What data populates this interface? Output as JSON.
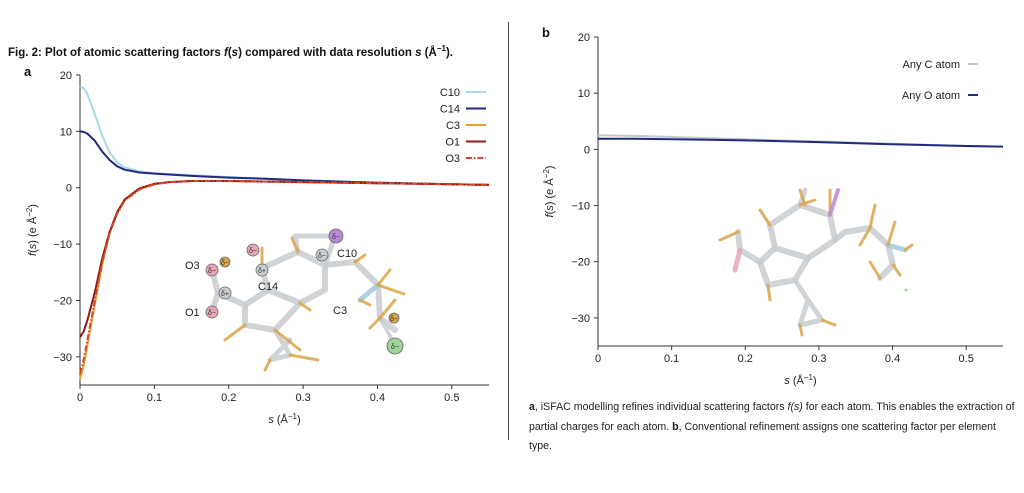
{
  "figure": {
    "title_prefix": "Fig. 2: Plot of atomic scattering factors ",
    "title_f": "f",
    "title_s1": "(",
    "title_s": "s",
    "title_mid": ") compared with data resolution ",
    "title_s2": "s",
    "title_unit": " (Å",
    "title_sup": "−1",
    "title_end": ")."
  },
  "caption": {
    "a_letter": "a",
    "a_text": ", iSFAC modelling refines individual scattering factors ",
    "a_f": "f(s)",
    "a_text2": " for each atom. This enables the extraction of partial charges for each atom. ",
    "b_letter": "b",
    "b_text": ", Conventional refinement assigns one scattering factor per element type."
  },
  "chart_data": [
    {
      "panel_label": "a",
      "type": "line",
      "xlabel": "s (Å−1)",
      "ylabel": "f(s) (e Å−2)",
      "xlim": [
        0,
        0.55
      ],
      "ylim": [
        -35,
        20
      ],
      "xticks": [
        0,
        0.1,
        0.2,
        0.3,
        0.4,
        0.5
      ],
      "xtick_labels": [
        "0",
        "0.1",
        "0.2",
        "0.3",
        "0.4",
        "0.5"
      ],
      "yticks": [
        20,
        10,
        0,
        -10,
        -20,
        -30
      ],
      "ytick_labels": [
        "20",
        "10",
        "0",
        "−10",
        "−20",
        "−30"
      ],
      "grid": false,
      "legend_position": "top-right",
      "series": [
        {
          "name": "C10",
          "color": "#a9d8e8",
          "dash": "solid",
          "x": [
            0,
            0.005,
            0.01,
            0.02,
            0.03,
            0.04,
            0.05,
            0.06,
            0.08,
            0.1,
            0.15,
            0.2,
            0.25,
            0.3,
            0.4,
            0.5,
            0.55
          ],
          "y": [
            18.0,
            17.6,
            16.6,
            13.0,
            9.2,
            6.3,
            4.5,
            3.6,
            2.9,
            2.6,
            2.2,
            1.9,
            1.6,
            1.3,
            0.9,
            0.6,
            0.5
          ]
        },
        {
          "name": "C14",
          "color": "#1f2a80",
          "dash": "solid",
          "x": [
            0,
            0.005,
            0.01,
            0.02,
            0.03,
            0.04,
            0.05,
            0.06,
            0.08,
            0.1,
            0.15,
            0.2,
            0.25,
            0.3,
            0.4,
            0.5,
            0.55
          ],
          "y": [
            10.0,
            9.9,
            9.6,
            8.3,
            6.4,
            4.9,
            3.8,
            3.2,
            2.7,
            2.5,
            2.1,
            1.8,
            1.6,
            1.3,
            0.9,
            0.6,
            0.5
          ]
        },
        {
          "name": "C3",
          "color": "#e8a22a",
          "dash": "solid",
          "x": [
            0,
            0.005,
            0.01,
            0.02,
            0.03,
            0.04,
            0.05,
            0.06,
            0.08,
            0.1,
            0.12,
            0.15,
            0.2,
            0.3,
            0.4,
            0.5,
            0.55
          ],
          "y": [
            -34.0,
            -31.5,
            -28.0,
            -20.5,
            -13.5,
            -8.0,
            -4.5,
            -2.2,
            -0.2,
            0.6,
            1.0,
            1.2,
            1.2,
            1.0,
            0.8,
            0.6,
            0.5
          ]
        },
        {
          "name": "O1",
          "color": "#8b1a1a",
          "dash": "solid",
          "x": [
            0,
            0.005,
            0.01,
            0.02,
            0.03,
            0.04,
            0.05,
            0.06,
            0.08,
            0.1,
            0.12,
            0.15,
            0.2,
            0.3,
            0.4,
            0.5,
            0.55
          ],
          "y": [
            -26.5,
            -25.5,
            -23.5,
            -18.5,
            -12.5,
            -7.8,
            -4.3,
            -2.1,
            -0.1,
            0.7,
            1.0,
            1.2,
            1.2,
            1.0,
            0.8,
            0.6,
            0.5
          ]
        },
        {
          "name": "O3",
          "color": "#d9472b",
          "dash": "dashdot",
          "x": [
            0,
            0.005,
            0.01,
            0.02,
            0.03,
            0.04,
            0.05,
            0.06,
            0.08,
            0.1,
            0.12,
            0.15,
            0.2,
            0.3,
            0.4,
            0.5,
            0.55
          ],
          "y": [
            -33.0,
            -30.5,
            -27.0,
            -20.0,
            -13.2,
            -8.0,
            -4.6,
            -2.3,
            -0.3,
            0.6,
            1.0,
            1.2,
            1.2,
            1.0,
            0.8,
            0.6,
            0.5
          ]
        }
      ],
      "molecule_labels": [
        "O3",
        "O1",
        "C14",
        "C10",
        "C3"
      ],
      "charge_symbol_neg": "δ−",
      "charge_symbol_pos": "δ+"
    },
    {
      "panel_label": "b",
      "type": "line",
      "xlabel": "s (Å−1)",
      "ylabel": "f(s) (e Å−2)",
      "xlim": [
        0,
        0.55
      ],
      "ylim": [
        -35,
        20
      ],
      "xticks": [
        0,
        0.1,
        0.2,
        0.3,
        0.4,
        0.5
      ],
      "xtick_labels": [
        "0",
        "0.1",
        "0.2",
        "0.3",
        "0.4",
        "0.5"
      ],
      "yticks": [
        20,
        10,
        0,
        -10,
        -20,
        -30
      ],
      "ytick_labels": [
        "20",
        "10",
        "0",
        "−10",
        "−20",
        "−30"
      ],
      "grid": false,
      "legend_position": "top-right",
      "series": [
        {
          "name": "Any C atom",
          "color": "#c4c8cc",
          "dash": "solid",
          "x": [
            0,
            0.05,
            0.1,
            0.15,
            0.2,
            0.3,
            0.4,
            0.5,
            0.55
          ],
          "y": [
            2.5,
            2.4,
            2.2,
            2.0,
            1.8,
            1.4,
            1.0,
            0.6,
            0.5
          ]
        },
        {
          "name": "Any O atom",
          "color": "#1f2a80",
          "dash": "solid",
          "x": [
            0,
            0.05,
            0.1,
            0.15,
            0.2,
            0.3,
            0.4,
            0.5,
            0.55
          ],
          "y": [
            1.9,
            1.9,
            1.8,
            1.7,
            1.6,
            1.3,
            0.9,
            0.6,
            0.5
          ]
        }
      ]
    }
  ]
}
